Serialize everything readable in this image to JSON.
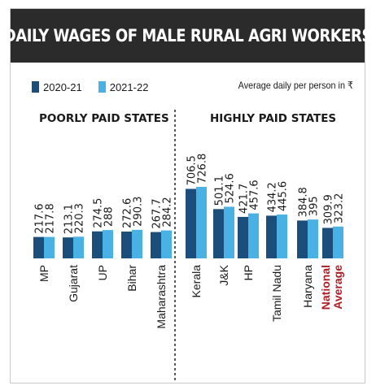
{
  "title": "DAILY WAGES OF MALE RURAL AGRI WORKERS",
  "legend": [
    {
      "label": "2020-21",
      "color": "#1b4e7a"
    },
    {
      "label": "2021-22",
      "color": "#49b1e3"
    }
  ],
  "unit_note": "Average daily per person in ₹",
  "groups": {
    "poor": "POORLY PAID STATES",
    "high": "HIGHLY PAID STATES"
  },
  "chart_data": {
    "type": "bar",
    "categories": [
      "MP",
      "Gujarat",
      "UP",
      "Bihar",
      "Maharashtra",
      "Kerala",
      "J&K",
      "HP",
      "Tamil Nadu",
      "Haryana",
      "National Average"
    ],
    "series": [
      {
        "name": "2020-21",
        "values": [
          217.6,
          213.1,
          274.5,
          272.6,
          267.7,
          706.5,
          501.1,
          421.7,
          434.2,
          384.8,
          309.9
        ]
      },
      {
        "name": "2021-22",
        "values": [
          217.8,
          220.3,
          288,
          290.3,
          284.2,
          726.8,
          524.6,
          457.6,
          445.6,
          395,
          323.2
        ]
      }
    ],
    "groups": [
      {
        "label": "POORLY PAID STATES",
        "categories": [
          "MP",
          "Gujarat",
          "UP",
          "Bihar",
          "Maharashtra"
        ]
      },
      {
        "label": "HIGHLY PAID STATES",
        "categories": [
          "Kerala",
          "J&K",
          "HP",
          "Tamil Nadu",
          "Haryana",
          "National Average"
        ]
      }
    ],
    "highlight_category": "National Average",
    "highlight_color": "#b01c24",
    "ylim": [
      0,
      760
    ],
    "grid": false,
    "legend_position": "top-left"
  }
}
